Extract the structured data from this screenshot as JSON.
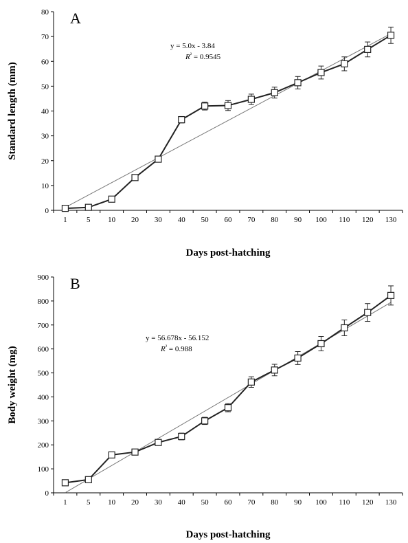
{
  "chart_data": [
    {
      "type": "line",
      "panel_label": "A",
      "categories": [
        "1",
        "5",
        "10",
        "20",
        "30",
        "40",
        "50",
        "60",
        "70",
        "80",
        "90",
        "100",
        "110",
        "120",
        "130"
      ],
      "series": [
        {
          "values": [
            0.8,
            1.2,
            4.5,
            13.2,
            20.6,
            36.5,
            42.0,
            42.2,
            44.7,
            47.4,
            51.4,
            55.5,
            59.0,
            64.8,
            70.5
          ],
          "errors": [
            0.3,
            0.4,
            0.6,
            0.9,
            1.0,
            1.3,
            1.6,
            2.0,
            2.1,
            2.2,
            2.5,
            2.6,
            2.8,
            3.0,
            3.3
          ],
          "marker": "square-open"
        }
      ],
      "trendline": {
        "equation": "y = 5.0x - 3.84",
        "r2_prefix": "R",
        "r2_value": " = 0.9545",
        "slope": 5.0,
        "intercept": -3.84
      },
      "xlabel": "Days post-hatching",
      "ylabel": "Standard length (mm)",
      "ylim": [
        0,
        80
      ],
      "yticks": [
        "0",
        "10",
        "20",
        "30",
        "40",
        "50",
        "60",
        "70",
        "80"
      ]
    },
    {
      "type": "line",
      "panel_label": "B",
      "categories": [
        "1",
        "5",
        "10",
        "20",
        "30",
        "40",
        "50",
        "60",
        "70",
        "80",
        "90",
        "100",
        "110",
        "120",
        "130"
      ],
      "series": [
        {
          "values": [
            42,
            55,
            158,
            170,
            210,
            235,
            300,
            355,
            462,
            512,
            562,
            622,
            688,
            752,
            823
          ],
          "errors": [
            5,
            6,
            9,
            10,
            12,
            14,
            15,
            17,
            22,
            24,
            27,
            30,
            33,
            37,
            40
          ],
          "marker": "square-open"
        }
      ],
      "trendline": {
        "equation": "y = 56.678x - 56.152",
        "r2_prefix": "R",
        "r2_value": " = 0.988",
        "slope": 56.678,
        "intercept": -56.152
      },
      "xlabel": "Days post-hatching",
      "ylabel": "Body weight (mg)",
      "ylim": [
        0,
        900
      ],
      "yticks": [
        "0",
        "100",
        "200",
        "300",
        "400",
        "500",
        "600",
        "700",
        "800",
        "900"
      ]
    }
  ]
}
